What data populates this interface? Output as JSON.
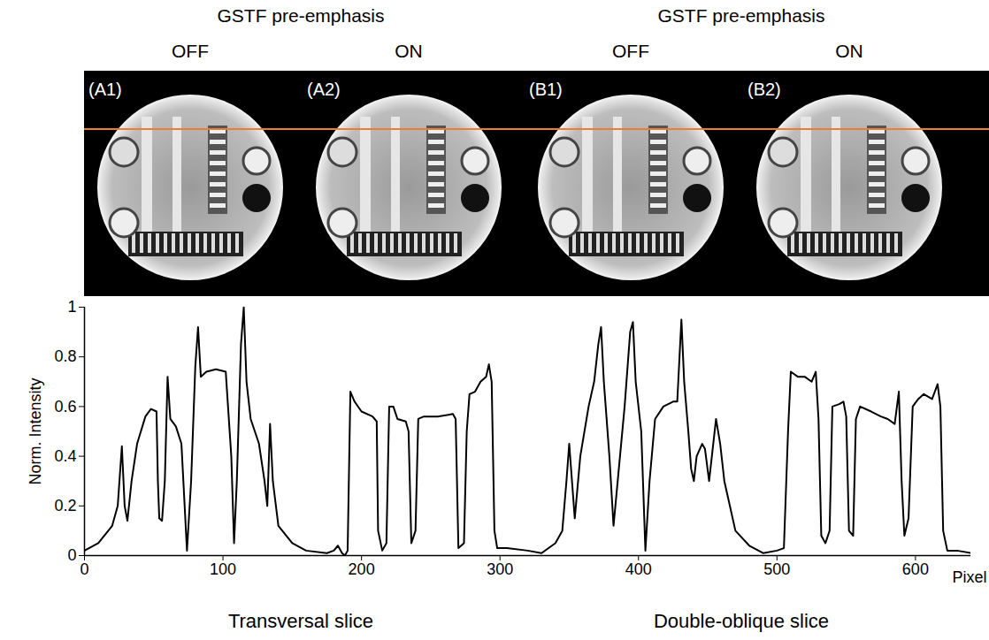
{
  "figure": {
    "groups": [
      {
        "heading": "GSTF pre-emphasis",
        "columns": [
          "OFF",
          "ON"
        ],
        "panels": [
          "(A1)",
          "(A2)"
        ],
        "caption": "Transversal slice"
      },
      {
        "heading": "GSTF pre-emphasis",
        "columns": [
          "OFF",
          "ON"
        ],
        "panels": [
          "(B1)",
          "(B2)"
        ],
        "caption": "Double-oblique slice"
      }
    ]
  },
  "chart_data": {
    "type": "line",
    "x_label": "Pixel",
    "y_label": "Norm. Intensity",
    "color": "#000000",
    "xlim": [
      0,
      640
    ],
    "xticks": [
      0,
      100,
      200,
      300,
      400,
      500,
      600
    ],
    "ylim": [
      0,
      1
    ],
    "yticks": [
      0,
      0.2,
      0.4,
      0.6,
      0.8,
      1
    ],
    "x": [
      0,
      10,
      20,
      24,
      27,
      29,
      31,
      34,
      38,
      44,
      48,
      52,
      53,
      54,
      56,
      58,
      60,
      62,
      66,
      70,
      74,
      77,
      80,
      82,
      84,
      88,
      95,
      102,
      106,
      108,
      110,
      113,
      115,
      117,
      120,
      126,
      130,
      132,
      134,
      136,
      140,
      150,
      160,
      175,
      180,
      183,
      186,
      188,
      190,
      192,
      195,
      200,
      208,
      211,
      212,
      215,
      218,
      220,
      223,
      226,
      232,
      234,
      236,
      239,
      241,
      245,
      255,
      266,
      268,
      270,
      274,
      276,
      278,
      282,
      286,
      290,
      292,
      294,
      296,
      298,
      305,
      320,
      330,
      340,
      345,
      348,
      350,
      352,
      354,
      358,
      364,
      368,
      371,
      373,
      375,
      379,
      382,
      385,
      390,
      394,
      396,
      398,
      402,
      405,
      408,
      412,
      418,
      425,
      428,
      431,
      433,
      436,
      438,
      440,
      442,
      446,
      448,
      451,
      454,
      456,
      459,
      462,
      470,
      480,
      490,
      500,
      505,
      508,
      510,
      515,
      520,
      525,
      528,
      530,
      532,
      535,
      538,
      540,
      545,
      548,
      550,
      552,
      555,
      557,
      560,
      568,
      575,
      580,
      585,
      588,
      590,
      592,
      595,
      598,
      602,
      606,
      612,
      616,
      618,
      620,
      623,
      630,
      640
    ],
    "values": [
      0.02,
      0.05,
      0.12,
      0.2,
      0.44,
      0.2,
      0.14,
      0.3,
      0.45,
      0.56,
      0.59,
      0.58,
      0.3,
      0.15,
      0.14,
      0.3,
      0.72,
      0.55,
      0.52,
      0.45,
      0.02,
      0.3,
      0.76,
      0.92,
      0.72,
      0.74,
      0.75,
      0.74,
      0.4,
      0.05,
      0.3,
      0.85,
      1.0,
      0.7,
      0.55,
      0.45,
      0.3,
      0.2,
      0.53,
      0.3,
      0.12,
      0.05,
      0.02,
      0.01,
      0.02,
      0.04,
      0.01,
      0.0,
      0.02,
      0.66,
      0.62,
      0.58,
      0.56,
      0.54,
      0.1,
      0.02,
      0.05,
      0.6,
      0.6,
      0.55,
      0.54,
      0.5,
      0.05,
      0.1,
      0.55,
      0.56,
      0.56,
      0.57,
      0.55,
      0.03,
      0.05,
      0.5,
      0.65,
      0.66,
      0.7,
      0.72,
      0.77,
      0.7,
      0.1,
      0.03,
      0.03,
      0.02,
      0.01,
      0.05,
      0.1,
      0.3,
      0.45,
      0.3,
      0.15,
      0.4,
      0.6,
      0.7,
      0.85,
      0.92,
      0.7,
      0.4,
      0.12,
      0.3,
      0.6,
      0.9,
      0.94,
      0.7,
      0.5,
      0.02,
      0.3,
      0.55,
      0.6,
      0.62,
      0.62,
      0.95,
      0.7,
      0.5,
      0.35,
      0.3,
      0.4,
      0.45,
      0.43,
      0.3,
      0.45,
      0.55,
      0.45,
      0.3,
      0.1,
      0.04,
      0.01,
      0.02,
      0.03,
      0.5,
      0.74,
      0.72,
      0.72,
      0.7,
      0.74,
      0.55,
      0.08,
      0.05,
      0.1,
      0.6,
      0.61,
      0.62,
      0.56,
      0.1,
      0.08,
      0.55,
      0.6,
      0.58,
      0.56,
      0.55,
      0.53,
      0.66,
      0.3,
      0.08,
      0.15,
      0.6,
      0.63,
      0.65,
      0.63,
      0.69,
      0.6,
      0.1,
      0.02,
      0.02,
      0.01
    ]
  }
}
